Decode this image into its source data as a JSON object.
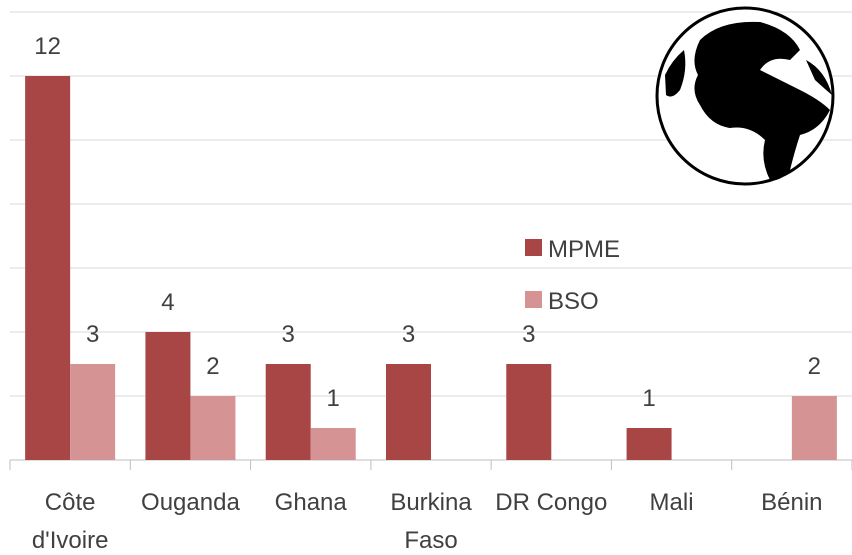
{
  "chart_data": {
    "type": "bar",
    "categories": [
      "Côte d'Ivoire",
      "Ouganda",
      "Ghana",
      "Burkina Faso",
      "DR Congo",
      "Mali",
      "Bénin"
    ],
    "series": [
      {
        "name": "MPME",
        "color": "#a84545",
        "values": [
          12,
          4,
          3,
          3,
          3,
          1,
          null
        ]
      },
      {
        "name": "BSO",
        "color": "#d69393",
        "values": [
          3,
          2,
          1,
          null,
          null,
          null,
          2
        ]
      }
    ],
    "ylim": [
      0,
      14
    ],
    "yticks": [
      0,
      2,
      4,
      6,
      8,
      10,
      12,
      14
    ],
    "grid": true
  }
}
